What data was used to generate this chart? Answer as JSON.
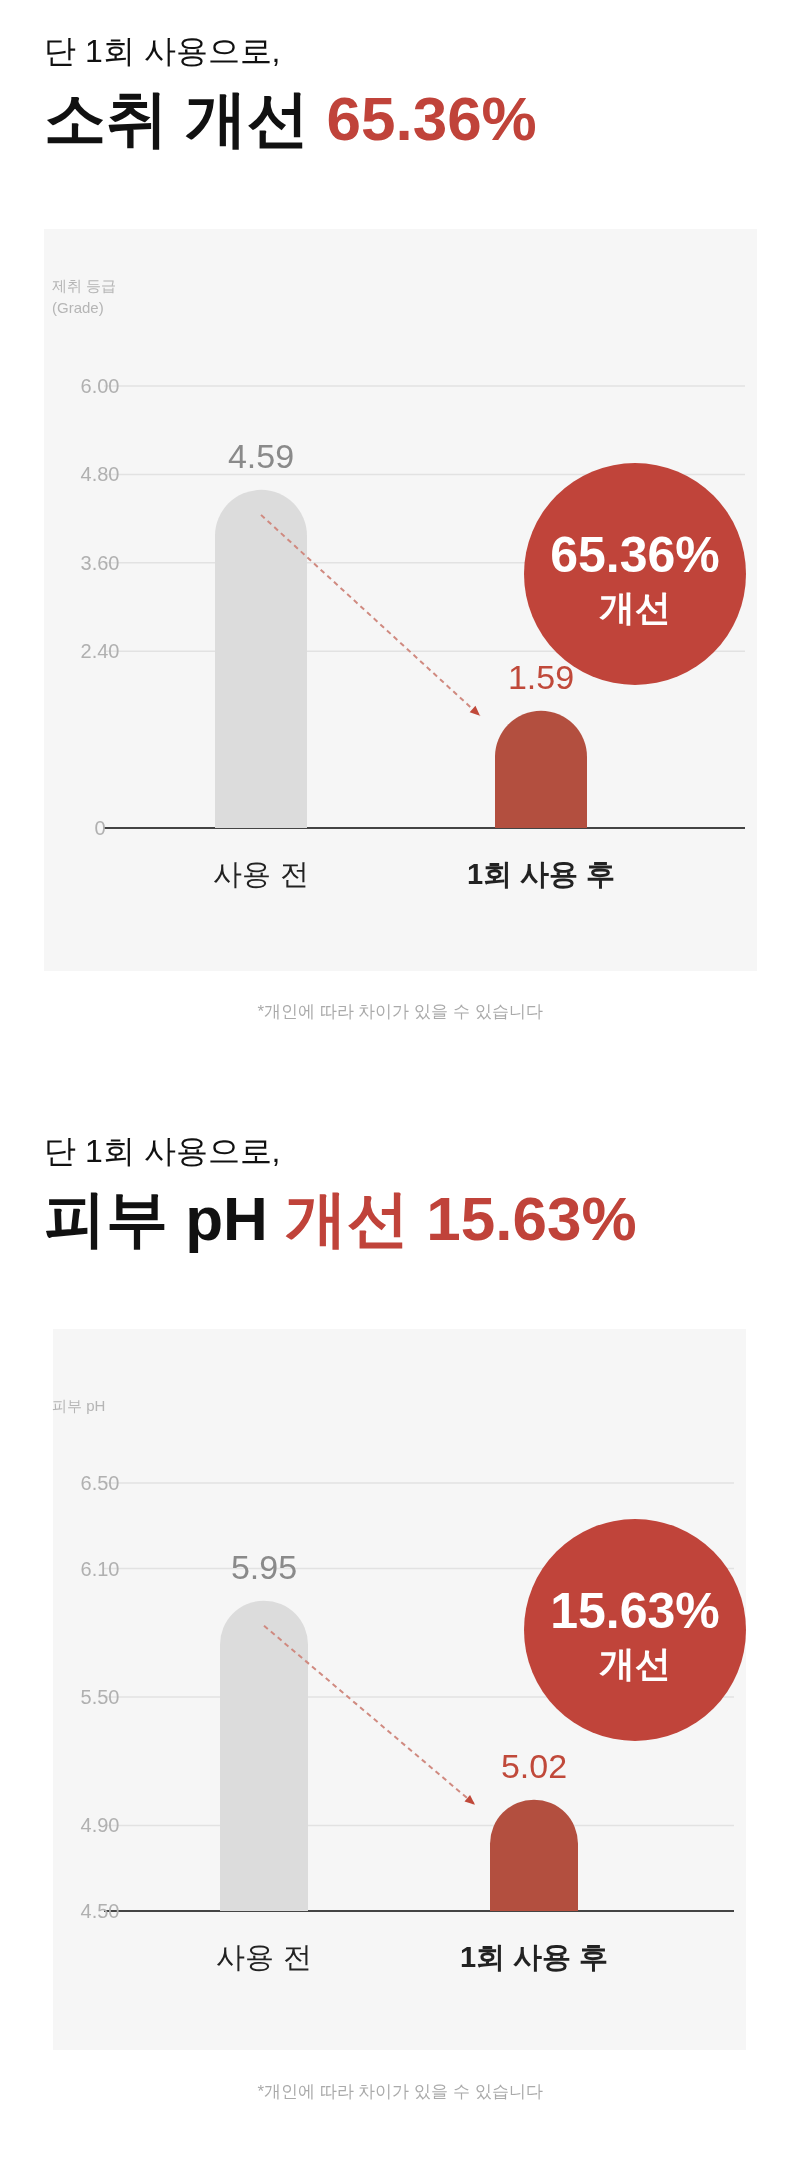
{
  "chart_data": [
    {
      "type": "bar",
      "subtitle": "단 1회 사용으로,",
      "title": "소취 개선 65.36%",
      "ylabel": "제취 등급\n(Grade)",
      "categories": [
        "사용 전",
        "1회 사용 후"
      ],
      "values": [
        4.59,
        1.59
      ],
      "colors": [
        "#dcdcdc",
        "#b34f3f"
      ],
      "ylim": [
        0,
        6
      ],
      "yticks": [
        {
          "value": 0,
          "label": "0"
        },
        {
          "value": 2.4,
          "label": "2.40"
        },
        {
          "value": 3.6,
          "label": "3.60"
        },
        {
          "value": 4.8,
          "label": "4.80"
        },
        {
          "value": 6,
          "label": "6.00"
        }
      ],
      "grid": "y",
      "data_labels": true,
      "annotations": [
        "65.36%",
        "개선",
        "*개인에 따라 차이가 있을 수 있습니다"
      ]
    },
    {
      "type": "bar",
      "subtitle": "단 1회 사용으로,",
      "title": "피부 pH 개선 15.63%",
      "ylabel": "피부 pH",
      "categories": [
        "사용 전",
        "1회 사용 후"
      ],
      "values": [
        5.95,
        5.02
      ],
      "colors": [
        "#dcdcdc",
        "#b34f3f"
      ],
      "ylim": [
        4.5,
        6.5
      ],
      "yticks": [
        {
          "value": 4.5,
          "label": "4.50"
        },
        {
          "value": 4.9,
          "label": "4.90"
        },
        {
          "value": 5.5,
          "label": "5.50"
        },
        {
          "value": 6.1,
          "label": "6.10"
        },
        {
          "value": 6.5,
          "label": "6.50"
        }
      ],
      "grid": "y",
      "data_labels": true,
      "annotations": [
        "15.63%",
        "개선",
        "*개인에 따라 차이가 있을 수 있습니다"
      ]
    }
  ]
}
